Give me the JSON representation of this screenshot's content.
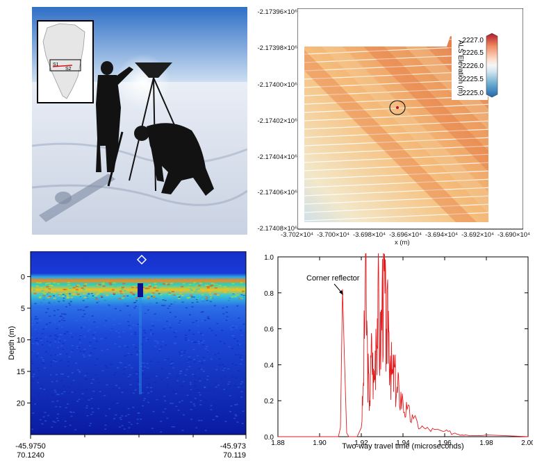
{
  "photo": {
    "inset_labels": [
      "S1",
      "S2"
    ]
  },
  "als_map": {
    "colorbar": {
      "label": "ALS Elevation (m)",
      "ticks": [
        "2227.0",
        "2226.5",
        "2226.0",
        "2225.5",
        "2225.0"
      ],
      "colors": [
        "#b2182b",
        "#ef8a62",
        "#fddbc7",
        "#f7f7f7",
        "#d1e5f0",
        "#67a9cf",
        "#2166ac"
      ]
    },
    "y_ticks": [
      "-2.17396×10⁶",
      "-2.17398×10⁶",
      "-2.17400×10⁶",
      "-2.17402×10⁶",
      "-2.17404×10⁶",
      "-2.17406×10⁶",
      "-2.17408×10⁶"
    ],
    "x_ticks": [
      "-3.702×10⁴",
      "-3.700×10⁴",
      "-3.698×10⁴",
      "-3.696×10⁴",
      "-3.694×10⁴",
      "-3.692×10⁴",
      "-3.690×10⁴"
    ],
    "xlabel": "x (m)"
  },
  "radargram": {
    "ylabel": "Depth (m)",
    "y_ticks": [
      "0",
      "5",
      "10",
      "15",
      "20"
    ],
    "y_values": [
      0,
      5,
      10,
      15,
      20
    ],
    "ylim": [
      -4,
      25
    ],
    "x_left": [
      "-45.9750",
      "70.1240"
    ],
    "x_right": [
      "-45.973",
      "70.119"
    ]
  },
  "chart_data": {
    "type": "line",
    "title": "",
    "xlabel": "Two-way travel time (microseconds)",
    "ylabel": "",
    "xlim": [
      1.88,
      2.0
    ],
    "ylim": [
      0,
      1.0
    ],
    "x_ticks": [
      "1.88",
      "1.90",
      "1.92",
      "1.94",
      "1.96",
      "1.98",
      "2.00"
    ],
    "y_ticks": [
      "0.0",
      "0.2",
      "0.4",
      "0.6",
      "0.8",
      "1.0"
    ],
    "annotation": "Corner reflector",
    "series": [
      {
        "color": "#e31a1c",
        "x": [
          1.88,
          1.905,
          1.909,
          1.91,
          1.911,
          1.912,
          1.913,
          1.914,
          1.918,
          1.92,
          1.921,
          1.922,
          1.923,
          1.924,
          1.925,
          1.926,
          1.927,
          1.928,
          1.929,
          1.93,
          1.931,
          1.932,
          1.933,
          1.934,
          1.935,
          1.936,
          1.937,
          1.938,
          1.94,
          1.942,
          1.945,
          1.95,
          1.955,
          1.96,
          1.965,
          1.97,
          1.98,
          1.99,
          2.0
        ],
        "y": [
          0.0,
          0.0,
          0.0,
          0.05,
          0.82,
          0.4,
          0.02,
          0.0,
          0.0,
          0.05,
          0.3,
          1.0,
          0.45,
          0.2,
          0.55,
          0.3,
          0.6,
          0.85,
          0.5,
          0.85,
          0.92,
          0.6,
          0.7,
          0.45,
          0.35,
          0.4,
          0.25,
          0.3,
          0.2,
          0.15,
          0.1,
          0.05,
          0.04,
          0.03,
          0.02,
          0.01,
          0.01,
          0.005,
          0.0
        ]
      }
    ]
  }
}
